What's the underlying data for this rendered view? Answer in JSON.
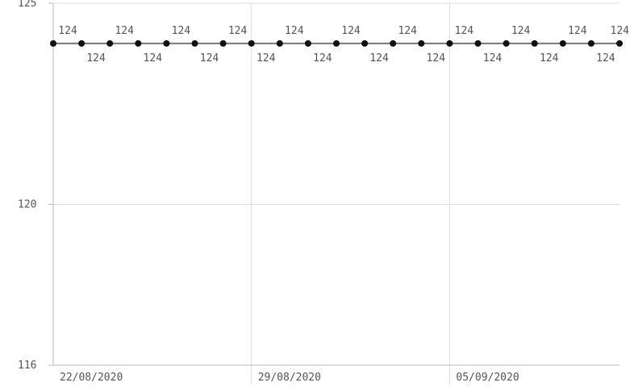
{
  "chart_data": {
    "type": "line",
    "title": "",
    "xlabel": "",
    "ylabel": "",
    "ylim": [
      116,
      125
    ],
    "y_ticks": [
      125,
      120,
      116
    ],
    "x_ticks": [
      "22/08/2020",
      "29/08/2020",
      "05/09/2020"
    ],
    "grid": true,
    "series": [
      {
        "x": [
          "2020-08-22",
          "2020-08-23",
          "2020-08-24",
          "2020-08-25",
          "2020-08-26",
          "2020-08-27",
          "2020-08-28",
          "2020-08-29",
          "2020-08-30",
          "2020-08-31",
          "2020-09-01",
          "2020-09-02",
          "2020-09-03",
          "2020-09-04",
          "2020-09-05",
          "2020-09-06",
          "2020-09-07",
          "2020-09-08",
          "2020-09-09",
          "2020-09-10",
          "2020-09-11"
        ],
        "values": [
          124,
          124,
          124,
          124,
          124,
          124,
          124,
          124,
          124,
          124,
          124,
          124,
          124,
          124,
          124,
          124,
          124,
          124,
          124,
          124,
          124
        ],
        "data_labels": [
          "124",
          "124",
          "124",
          "124",
          "124",
          "124",
          "124",
          "124",
          "124",
          "124",
          "124",
          "124",
          "124",
          "124",
          "124",
          "124",
          "124",
          "124",
          "124",
          "124",
          "124"
        ]
      }
    ],
    "colors": {
      "line": "#777777",
      "marker": "#111111",
      "grid": "#dddddd",
      "axis": "#bbbbbb",
      "text": "#555555"
    }
  }
}
